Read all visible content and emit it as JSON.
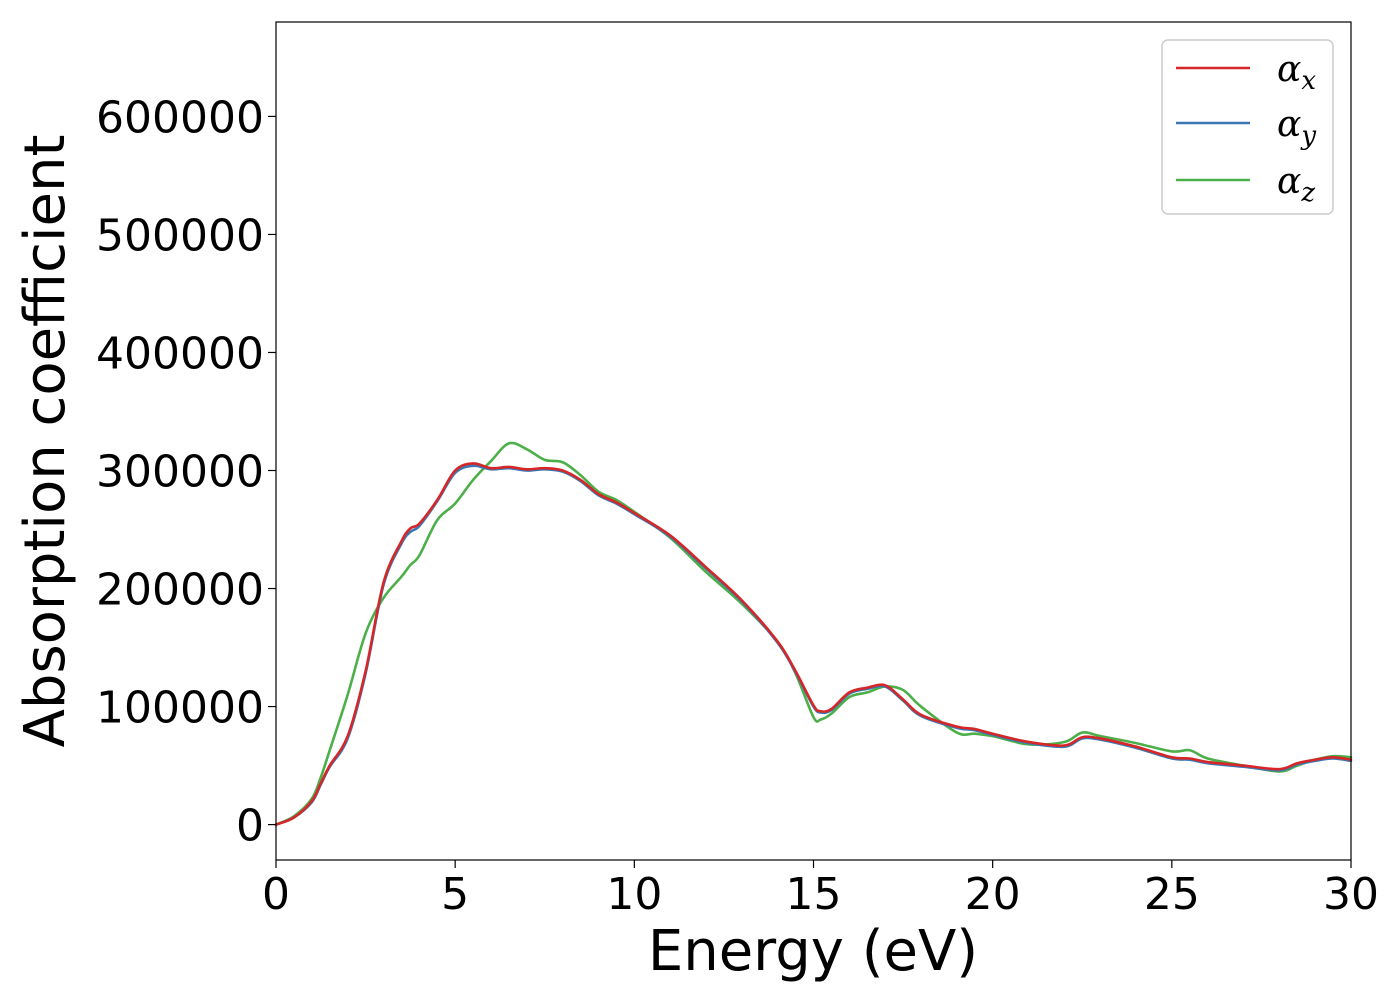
{
  "chart_data": {
    "type": "line",
    "title": "",
    "xlabel": "Energy (eV)",
    "ylabel": "Absorption coefficient",
    "xlim": [
      0,
      30
    ],
    "ylim": [
      -30000,
      680000
    ],
    "xticks": [
      0,
      5,
      10,
      15,
      20,
      25,
      30
    ],
    "yticks": [
      0,
      100000,
      200000,
      300000,
      400000,
      500000,
      600000
    ],
    "grid": false,
    "legend_position": "top-right",
    "x": [
      0,
      0.5,
      1,
      1.25,
      1.5,
      2,
      2.5,
      3,
      3.5,
      3.75,
      4,
      4.5,
      5,
      5.5,
      6,
      6.5,
      7,
      7.5,
      8,
      8.5,
      9,
      9.5,
      10,
      11,
      12,
      13,
      14,
      14.5,
      15,
      15.2,
      15.5,
      16,
      16.5,
      17,
      17.5,
      18,
      19,
      19.5,
      20,
      21,
      22,
      22.5,
      23,
      24,
      25,
      25.5,
      26,
      27,
      28,
      28.5,
      29,
      29.5,
      30
    ],
    "series": [
      {
        "name": "x",
        "color": "#d62728",
        "values": [
          0,
          6000,
          20000,
          35000,
          50000,
          75000,
          130000,
          205000,
          240000,
          251000,
          255000,
          275000,
          300000,
          306000,
          302000,
          303000,
          301000,
          302000,
          300000,
          292000,
          280000,
          273000,
          264000,
          245000,
          218000,
          190000,
          155000,
          130000,
          101000,
          96000,
          98000,
          112000,
          116000,
          118000,
          106000,
          93000,
          83000,
          81000,
          77000,
          70000,
          67000,
          74000,
          73000,
          66000,
          57000,
          56000,
          53000,
          50000,
          47000,
          52000,
          55000,
          57000,
          55000
        ]
      },
      {
        "name": "y",
        "color": "#3a77b4",
        "values": [
          0,
          6000,
          19000,
          34000,
          49000,
          73000,
          128000,
          203000,
          238000,
          248000,
          253000,
          274000,
          298000,
          304000,
          301000,
          302000,
          300000,
          301000,
          299000,
          291000,
          279000,
          272000,
          263000,
          244000,
          217000,
          189000,
          154000,
          129000,
          100000,
          95000,
          97000,
          111000,
          115000,
          117000,
          105000,
          92000,
          82000,
          80000,
          76000,
          69000,
          66000,
          73000,
          72000,
          65000,
          56000,
          55000,
          52000,
          49000,
          46000,
          51000,
          54000,
          56000,
          54000
        ]
      },
      {
        "name": "z",
        "color": "#4daf4a",
        "values": [
          0,
          7000,
          22000,
          40000,
          63000,
          110000,
          162000,
          192000,
          210000,
          220000,
          228000,
          258000,
          272000,
          292000,
          308000,
          323000,
          318000,
          309000,
          307000,
          296000,
          282000,
          275000,
          265000,
          243000,
          214000,
          187000,
          155000,
          128000,
          91000,
          89000,
          94000,
          108000,
          112000,
          117000,
          114000,
          100000,
          78000,
          77000,
          75000,
          68000,
          70000,
          78000,
          75000,
          69000,
          62000,
          63000,
          56000,
          50000,
          45000,
          50000,
          55000,
          58000,
          57000
        ]
      }
    ]
  },
  "legend": {
    "items": [
      {
        "symbol": "α",
        "subscript": "x"
      },
      {
        "symbol": "α",
        "subscript": "y"
      },
      {
        "symbol": "α",
        "subscript": "z"
      }
    ]
  }
}
